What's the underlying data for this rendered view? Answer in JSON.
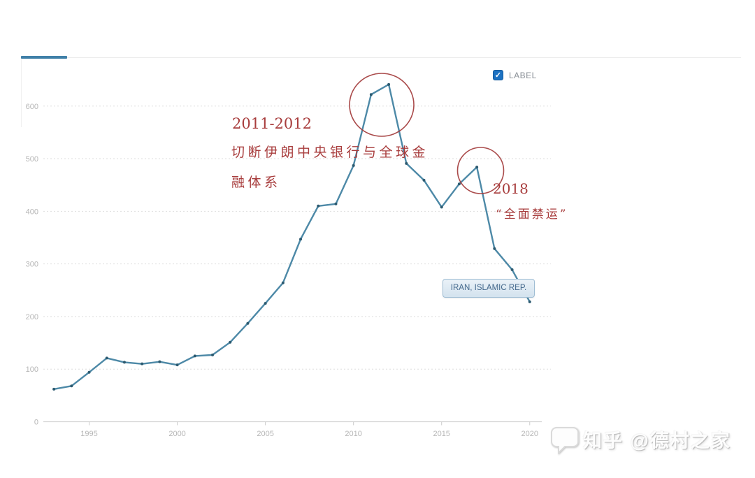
{
  "legend": {
    "label": "LABEL",
    "checked": true,
    "check_glyph": "✓",
    "checkbox_color": "#1d72c2"
  },
  "tooltip": {
    "text": "IRAN, ISLAMIC REP."
  },
  "annotations": {
    "color": "#a83d3d",
    "peak1_title": "2011-2012",
    "peak1_line1": "切断伊朗中央银行与全球金",
    "peak1_line2": "融体系",
    "peak2_title": "2018",
    "peak2_line1": "“全面禁运”"
  },
  "watermark": {
    "text": "知乎 @德村之家"
  },
  "chart_data": {
    "type": "line",
    "title": "",
    "xlabel": "",
    "ylabel": "",
    "series": [
      {
        "name": "IRAN, ISLAMIC REP.",
        "x": [
          1993,
          1994,
          1995,
          1996,
          1997,
          1998,
          1999,
          2000,
          2001,
          2002,
          2003,
          2004,
          2005,
          2006,
          2007,
          2008,
          2009,
          2010,
          2011,
          2012,
          2013,
          2014,
          2015,
          2016,
          2017,
          2018,
          2019,
          2020
        ],
        "values": [
          62,
          68,
          94,
          121,
          113,
          110,
          114,
          108,
          125,
          127,
          151,
          187,
          225,
          264,
          347,
          410,
          414,
          487,
          622,
          641,
          491,
          459,
          408,
          452,
          484,
          329,
          289,
          228
        ]
      }
    ],
    "x_ticks": [
      1995,
      2000,
      2005,
      2010,
      2015,
      2020
    ],
    "y_ticks": [
      0,
      100,
      200,
      300,
      400,
      500,
      600
    ],
    "xlim": [
      1992.4,
      2021.2
    ],
    "ylim": [
      0,
      690
    ],
    "grid": "horizontal-dashed",
    "legend_position": "top-right",
    "line_color": "#3e7f9f",
    "point_color": "#2c5a70",
    "annotation_circle_color": "#a13737",
    "annotated_events": [
      {
        "label": "2011-2012",
        "description": "切断伊朗中央银行与全球金融体系",
        "circled_years": [
          2011,
          2012
        ]
      },
      {
        "label": "2018",
        "description": "“全面禁运”",
        "circled_years": [
          2017
        ]
      }
    ]
  }
}
